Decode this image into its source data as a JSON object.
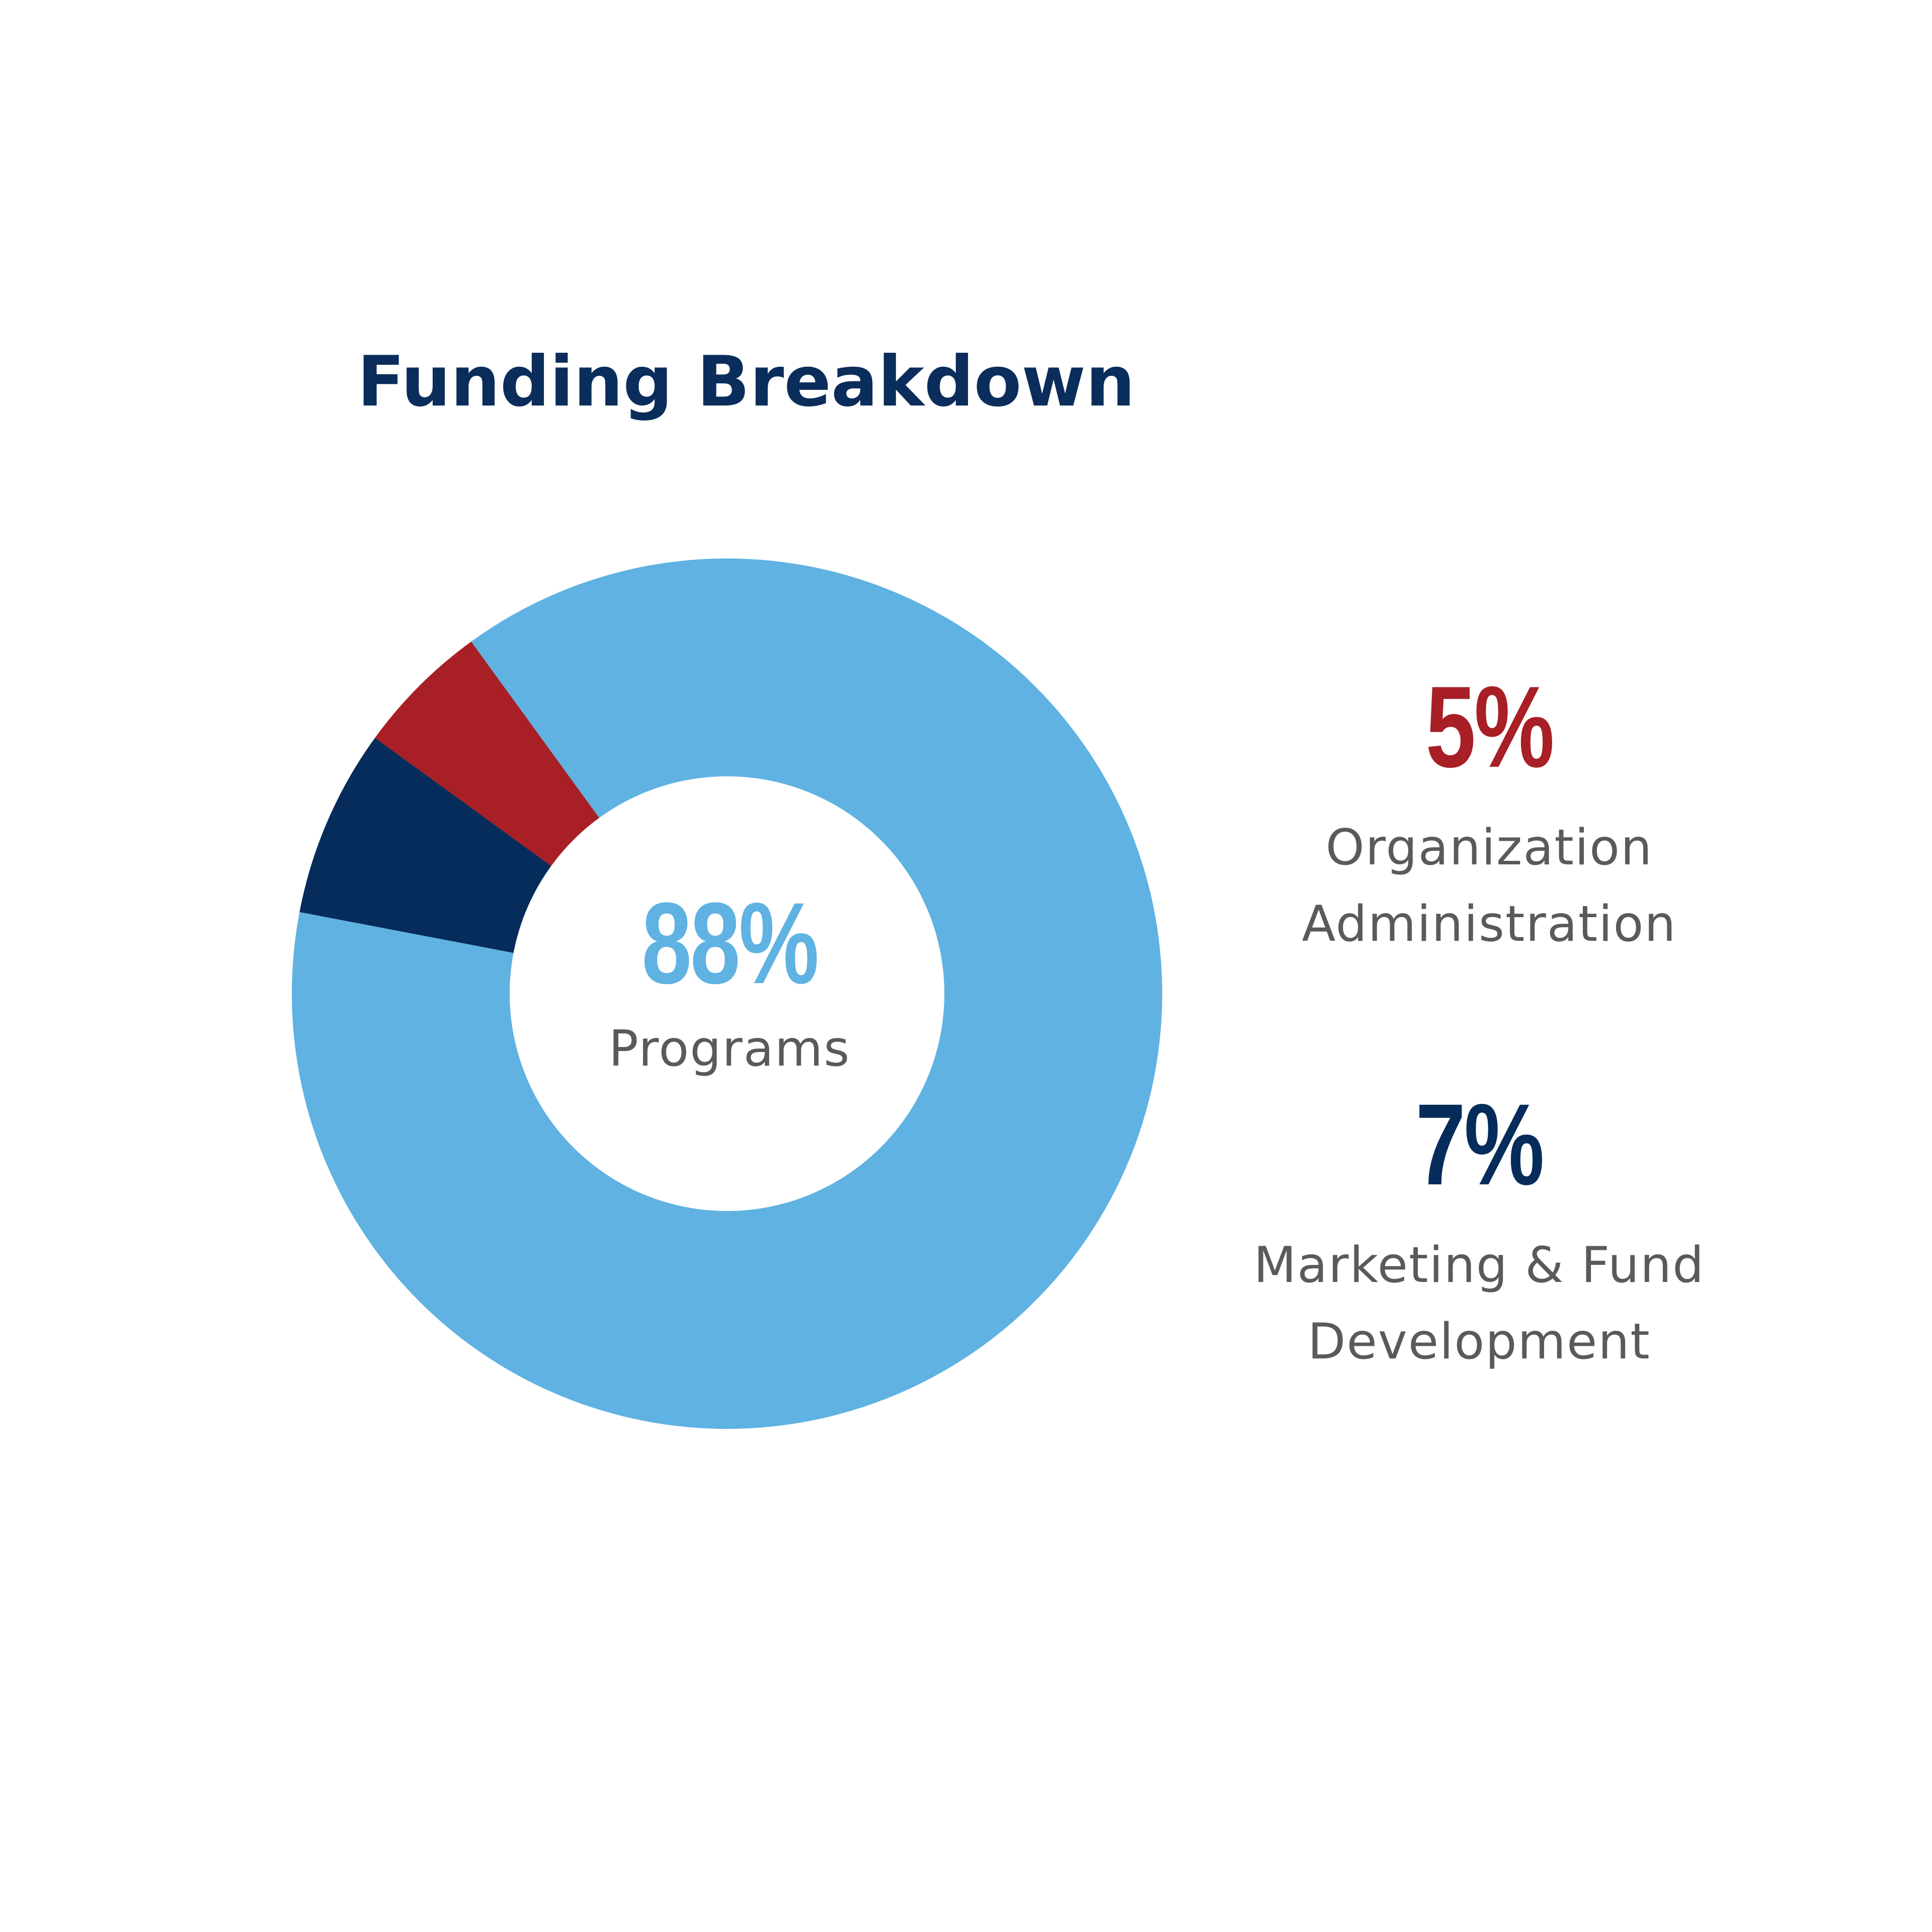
{
  "title": "Funding Breakdown",
  "center": {
    "value": "88%",
    "label": "Programs"
  },
  "callouts": [
    {
      "value": "5%",
      "label_lines": [
        "Organization",
        "Administration"
      ]
    },
    {
      "value": "7%",
      "label_lines": [
        "Marketing & Fund",
        "Development"
      ]
    }
  ],
  "colors": {
    "title": "#0b2d5b",
    "programs": "#5fb2e2",
    "administration": "#a81f26",
    "marketing": "#052c5a",
    "label_text": "#5a5a5a"
  },
  "chart_data": {
    "type": "pie",
    "style": "donut",
    "title": "Funding Breakdown",
    "categories": [
      "Programs",
      "Organization Administration",
      "Marketing & Fund Development"
    ],
    "values": [
      88,
      5,
      7
    ],
    "unit": "%",
    "colors": [
      "#5fb2e2",
      "#a81f26",
      "#052c5a"
    ],
    "legend": "right"
  }
}
